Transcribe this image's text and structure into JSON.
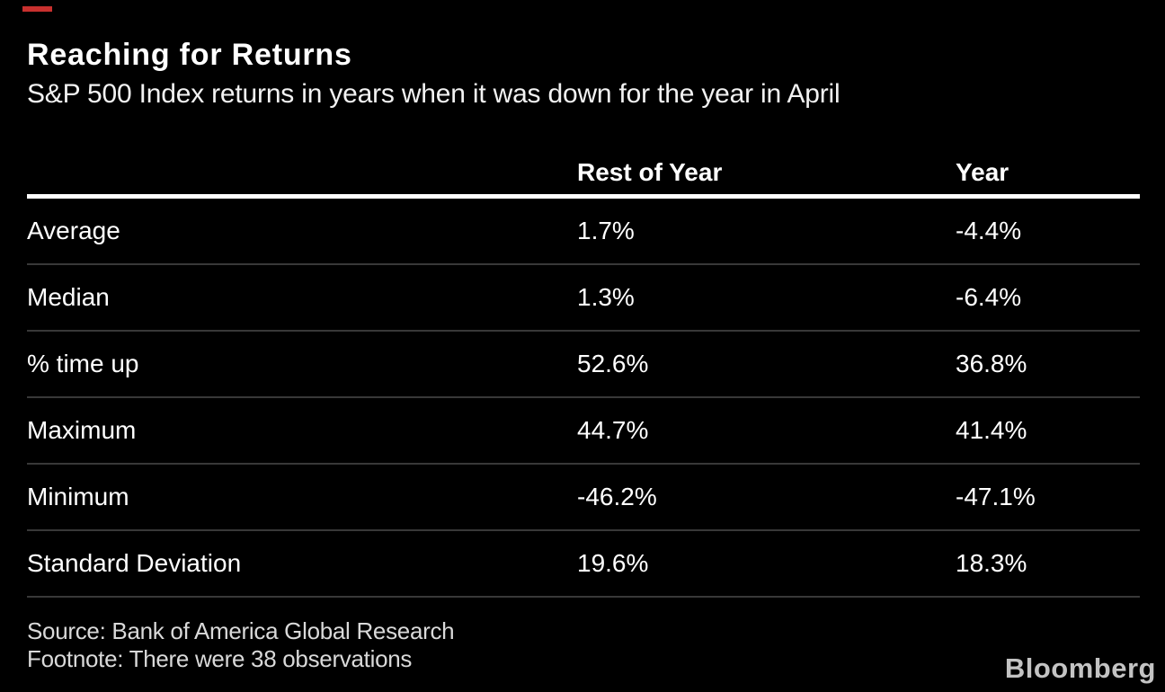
{
  "header": {
    "title": "Reaching for Returns",
    "subtitle": "S&P 500 Index returns in years when it was down for the year in April"
  },
  "chart_data": {
    "type": "table",
    "title": "Reaching for Returns",
    "subtitle": "S&P 500 Index returns in years when it was down for the year in April",
    "columns": [
      "Rest of Year",
      "Year"
    ],
    "rows": [
      {
        "label": "Average",
        "values": [
          "1.7%",
          "-4.4%"
        ]
      },
      {
        "label": "Median",
        "values": [
          "1.3%",
          "-6.4%"
        ]
      },
      {
        "label": "% time up",
        "values": [
          "52.6%",
          "36.8%"
        ]
      },
      {
        "label": "Maximum",
        "values": [
          "44.7%",
          "41.4%"
        ]
      },
      {
        "label": "Minimum",
        "values": [
          "-46.2%",
          "-47.1%"
        ]
      },
      {
        "label": "Standard Deviation",
        "values": [
          "19.6%",
          "18.3%"
        ]
      }
    ],
    "series": [
      {
        "name": "Rest of Year",
        "values": [
          1.7,
          1.3,
          52.6,
          44.7,
          -46.2,
          19.6
        ]
      },
      {
        "name": "Year",
        "values": [
          -4.4,
          -6.4,
          36.8,
          41.4,
          -47.1,
          18.3
        ]
      }
    ],
    "categories": [
      "Average",
      "Median",
      "% time up",
      "Maximum",
      "Minimum",
      "Standard Deviation"
    ],
    "layout": {
      "grid": "horizontal-row-separators",
      "header_rule": "thick-white",
      "background": "black"
    }
  },
  "footer": {
    "source": "Source: Bank of America Global Research",
    "footnote": "Footnote: There were 38 observations",
    "brand": "Bloomberg"
  },
  "icons": {
    "red_accent_dash": "red-accent-dash",
    "bloomberg_logo": "bloomberg-wordmark"
  },
  "colors": {
    "background": "#000000",
    "text": "#ffffff",
    "accent_red": "#c8302e",
    "row_separator": "#383838",
    "header_rule": "#ffffff",
    "footer_text": "#d9d9d9",
    "brand_gray": "#c3c3c3"
  }
}
